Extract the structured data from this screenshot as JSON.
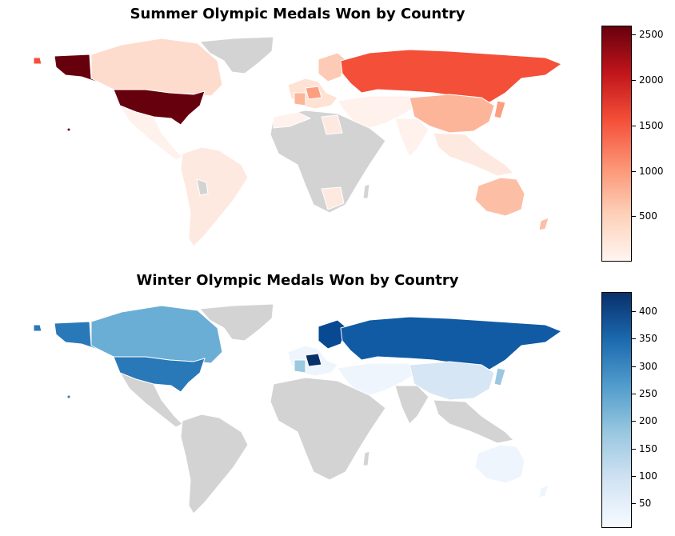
{
  "maps": [
    {
      "id": "summer",
      "title": "Summer Olympic Medals Won by Country",
      "colorbar": {
        "min": 0,
        "max": 2600,
        "ticks": [
          "500",
          "1000",
          "1500",
          "2000",
          "2500"
        ],
        "tick_values": [
          500,
          1000,
          1500,
          2000,
          2500
        ],
        "colors": [
          "#fff5f0",
          "#fdd0b9",
          "#fc9474",
          "#f44f39",
          "#c1151b",
          "#67000d"
        ]
      },
      "countries": [
        {
          "name": "United States",
          "value": 2600,
          "color": "#67000d"
        },
        {
          "name": "Russia",
          "value": 1500,
          "color": "#f44f39"
        },
        {
          "name": "China",
          "value": 720,
          "color": "#fcb599"
        },
        {
          "name": "Australia",
          "value": 600,
          "color": "#fcbfa6"
        },
        {
          "name": "Germany",
          "value": 900,
          "color": "#fc9e80"
        },
        {
          "name": "Canada",
          "value": 350,
          "color": "#fedccd"
        },
        {
          "name": "Brazil",
          "value": 130,
          "color": "#fee9e0"
        },
        {
          "name": "India",
          "value": 40,
          "color": "#fff1ec"
        },
        {
          "name": "Greenland",
          "value": null,
          "color": "#d3d3d3"
        }
      ]
    },
    {
      "id": "winter",
      "title": "Winter Olympic Medals Won by Country",
      "colorbar": {
        "min": 5,
        "max": 435,
        "ticks": [
          "50",
          "100",
          "150",
          "200",
          "250",
          "300",
          "350",
          "400"
        ],
        "tick_values": [
          50,
          100,
          150,
          200,
          250,
          300,
          350,
          400
        ],
        "colors": [
          "#f7fbff",
          "#d2e3f3",
          "#9ac8e0",
          "#529dcc",
          "#1c6aaf",
          "#08306b"
        ]
      },
      "countries": [
        {
          "name": "Russia",
          "value": 360,
          "color": "#105ba4"
        },
        {
          "name": "United States",
          "value": 330,
          "color": "#2979b9"
        },
        {
          "name": "Canada",
          "value": 220,
          "color": "#6aaed6"
        },
        {
          "name": "Norway",
          "value": 400,
          "color": "#084a91"
        },
        {
          "name": "Germany",
          "value": 430,
          "color": "#08306b"
        },
        {
          "name": "China",
          "value": 80,
          "color": "#d6e6f4"
        },
        {
          "name": "Australia",
          "value": 20,
          "color": "#eff5fc"
        },
        {
          "name": "Brazil",
          "value": null,
          "color": "#d3d3d3"
        },
        {
          "name": "Greenland",
          "value": null,
          "color": "#d3d3d3"
        }
      ]
    }
  ]
}
